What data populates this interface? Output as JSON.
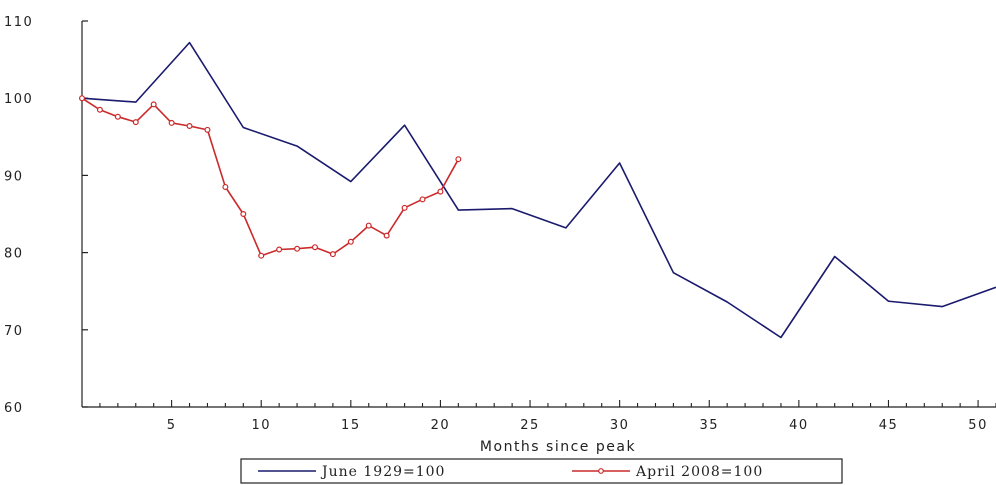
{
  "chart_data": {
    "type": "line",
    "xlabel": "Months since peak",
    "ylabel": "",
    "xlim": [
      0,
      51
    ],
    "ylim": [
      60,
      110
    ],
    "xticks": [
      5,
      10,
      15,
      20,
      25,
      30,
      35,
      40,
      45,
      50
    ],
    "xtick_labels": [
      "5",
      "10",
      "15",
      "20",
      "25",
      "30",
      "35",
      "40",
      "45",
      "50"
    ],
    "yticks": [
      60,
      70,
      80,
      90,
      100,
      110
    ],
    "ytick_labels": [
      "60",
      "70",
      "80",
      "90",
      "100",
      "110"
    ],
    "legend_position": "bottom",
    "grid": false,
    "series": [
      {
        "name": "June 1929=100",
        "color": "#1a1a6e",
        "marker": "none",
        "x": [
          0,
          3,
          6,
          9,
          12,
          15,
          18,
          21,
          24,
          27,
          30,
          33,
          36,
          39,
          42,
          45,
          48,
          51
        ],
        "y": [
          100,
          99.5,
          107.2,
          96.2,
          93.8,
          89.2,
          96.5,
          85.5,
          85.7,
          83.2,
          91.6,
          77.4,
          73.6,
          69.0,
          79.5,
          73.7,
          73.0,
          75.5
        ]
      },
      {
        "name": "April 2008=100",
        "color": "#cc2a2a",
        "marker": "circle",
        "x": [
          0,
          1,
          2,
          3,
          4,
          5,
          6,
          7,
          8,
          9,
          10,
          11,
          12,
          13,
          14,
          15,
          16,
          17,
          18,
          19,
          20,
          21
        ],
        "y": [
          100,
          98.5,
          97.6,
          96.9,
          99.2,
          96.8,
          96.4,
          95.9,
          88.5,
          85.0,
          79.6,
          80.4,
          80.5,
          80.7,
          79.8,
          81.4,
          83.5,
          82.2,
          85.8,
          86.9,
          87.9,
          92.1
        ]
      }
    ]
  }
}
